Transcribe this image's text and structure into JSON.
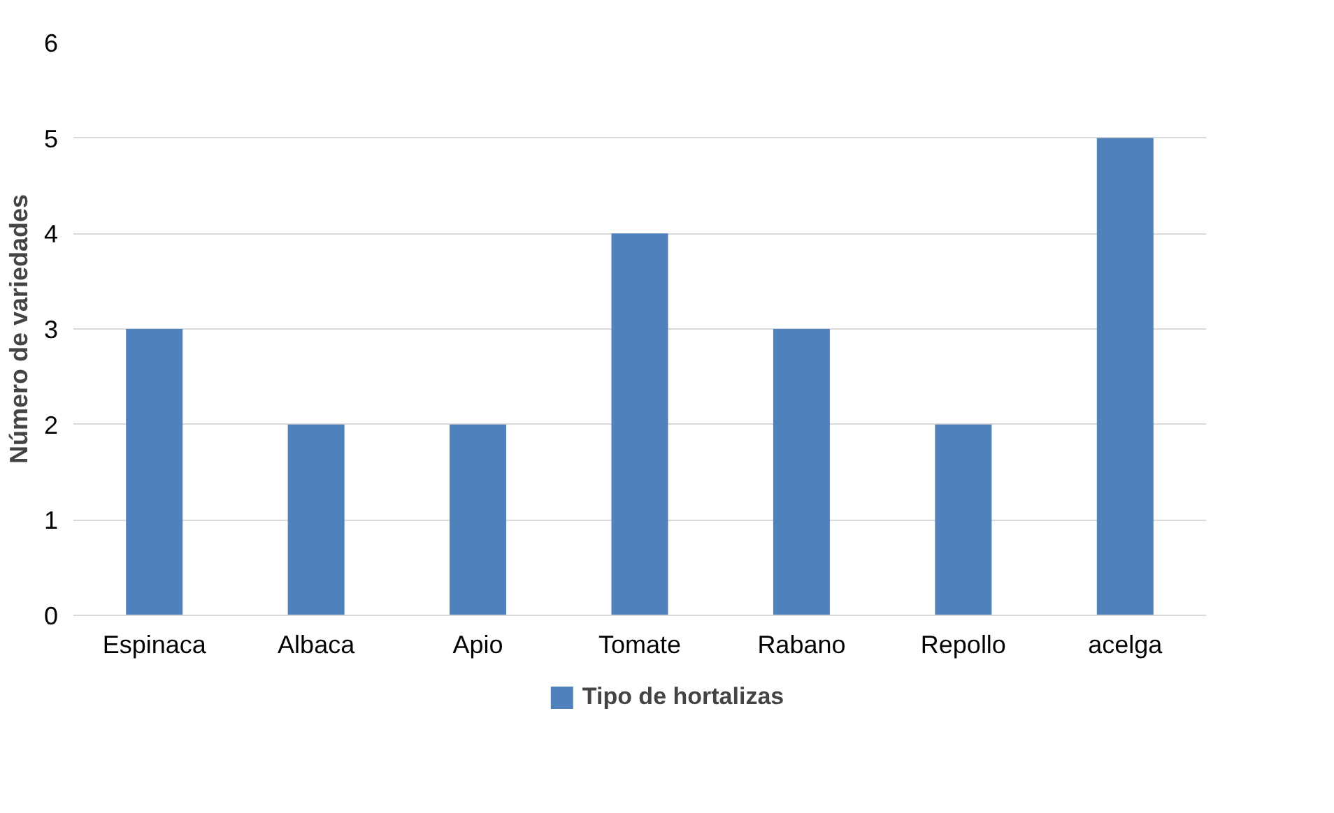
{
  "chart_data": {
    "type": "bar",
    "ylabel": "Número de variedades",
    "categories": [
      "Espinaca",
      "Albaca",
      "Apio",
      "Tomate",
      "Rabano",
      "Repollo",
      "acelga"
    ],
    "series": [
      {
        "name": "Tipo de hortalizas",
        "color": "#4f81bd",
        "values": [
          3,
          2,
          2,
          4,
          3,
          2,
          5
        ]
      }
    ],
    "ylim": [
      0,
      6
    ],
    "yticks": [
      0,
      1,
      2,
      3,
      4,
      5,
      6
    ],
    "grid": "y",
    "legend": "bottom"
  }
}
